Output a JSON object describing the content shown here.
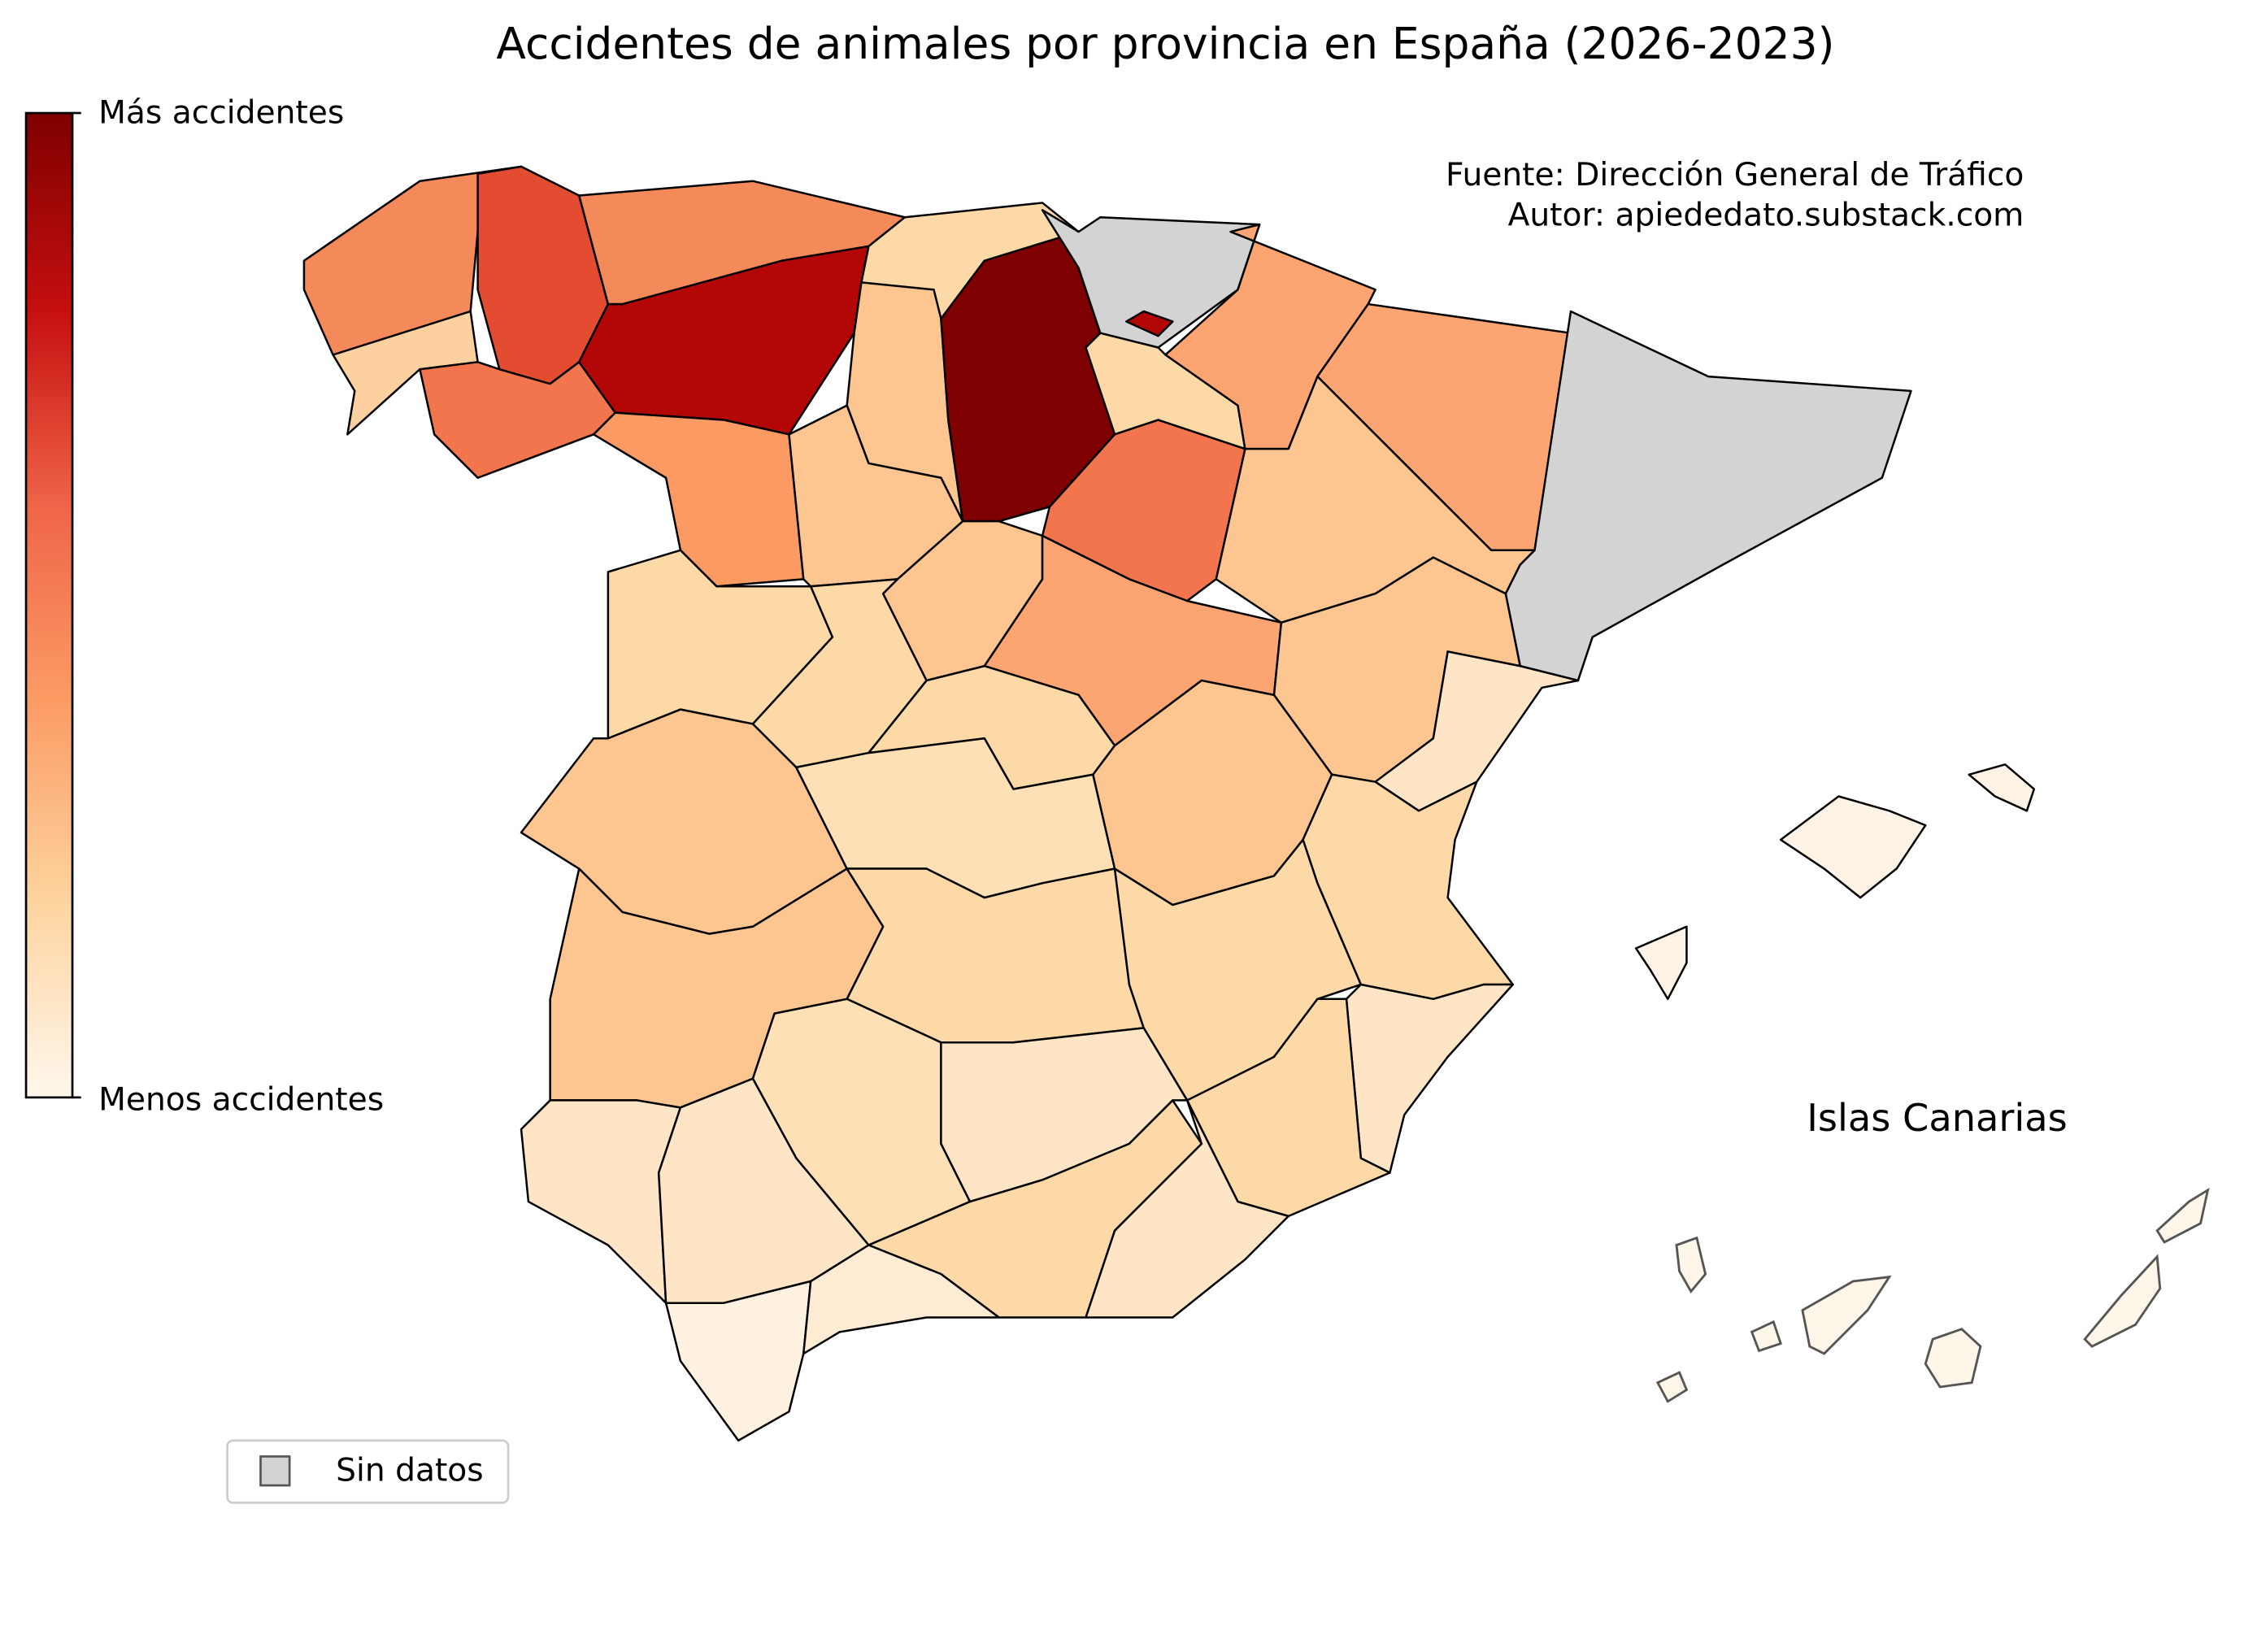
{
  "title": "Accidentes de animales por provincia en España (2026-2023)",
  "colorbar": {
    "top_label": "Más accidentes",
    "bottom_label": "Menos accidentes"
  },
  "source": "Fuente: Dirección General de Tráfico",
  "author": "Autor: apiededato.substack.com",
  "legend": {
    "label": "Sin datos"
  },
  "inset_label": "Islas Canarias"
}
